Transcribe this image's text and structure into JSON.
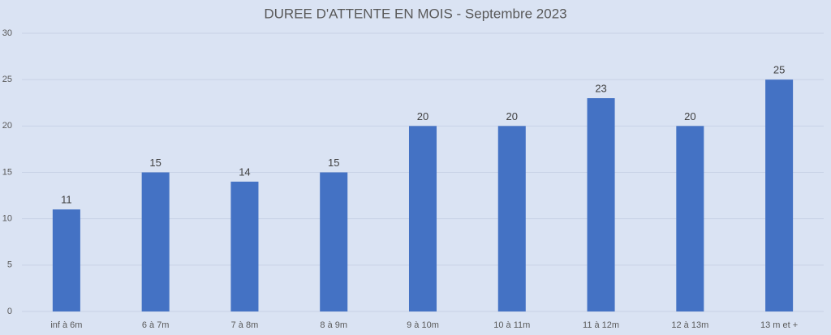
{
  "chart_data": {
    "type": "bar",
    "title": "DUREE D'ATTENTE EN MOIS - Septembre 2023",
    "categories": [
      "inf à 6m",
      "6 à 7m",
      "7 à 8m",
      "8 à 9m",
      "9 à 10m",
      "10 à 11m",
      "11 à 12m",
      "12 à 13m",
      "13 m et +"
    ],
    "values": [
      11,
      15,
      14,
      15,
      20,
      20,
      23,
      20,
      25
    ],
    "color": "#4472c4",
    "ylim": [
      0,
      30
    ],
    "yticks": [
      0,
      5,
      10,
      15,
      20,
      25,
      30
    ],
    "grid": true
  }
}
